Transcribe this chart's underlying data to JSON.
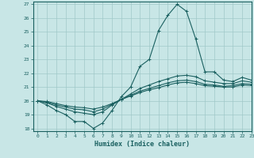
{
  "xlabel": "Humidex (Indice chaleur)",
  "xlim": [
    -0.5,
    23
  ],
  "ylim": [
    17.8,
    27.2
  ],
  "yticks": [
    18,
    19,
    20,
    21,
    22,
    23,
    24,
    25,
    26,
    27
  ],
  "xticks": [
    0,
    1,
    2,
    3,
    4,
    5,
    6,
    7,
    8,
    9,
    10,
    11,
    12,
    13,
    14,
    15,
    16,
    17,
    18,
    19,
    20,
    21,
    22,
    23
  ],
  "background_color": "#c8e6e6",
  "grid_color": "#a0c8c8",
  "line_color": "#1a6060",
  "lines": [
    [
      20.0,
      19.7,
      19.3,
      19.0,
      18.5,
      18.5,
      18.0,
      18.4,
      19.3,
      20.3,
      21.0,
      22.5,
      23.0,
      25.1,
      26.2,
      27.0,
      26.5,
      24.5,
      22.1,
      22.1,
      21.5,
      21.4,
      21.7,
      21.5
    ],
    [
      20.0,
      19.85,
      19.6,
      19.4,
      19.2,
      19.1,
      19.0,
      19.2,
      19.7,
      20.1,
      20.5,
      20.9,
      21.15,
      21.4,
      21.6,
      21.8,
      21.85,
      21.75,
      21.45,
      21.35,
      21.25,
      21.25,
      21.45,
      21.35
    ],
    [
      20.0,
      19.9,
      19.7,
      19.55,
      19.4,
      19.35,
      19.2,
      19.4,
      19.75,
      20.1,
      20.4,
      20.7,
      20.9,
      21.1,
      21.3,
      21.45,
      21.5,
      21.4,
      21.2,
      21.15,
      21.05,
      21.1,
      21.25,
      21.2
    ],
    [
      20.0,
      19.95,
      19.8,
      19.65,
      19.55,
      19.5,
      19.4,
      19.55,
      19.8,
      20.1,
      20.35,
      20.6,
      20.8,
      20.95,
      21.15,
      21.3,
      21.35,
      21.25,
      21.1,
      21.05,
      21.0,
      21.0,
      21.15,
      21.1
    ]
  ]
}
